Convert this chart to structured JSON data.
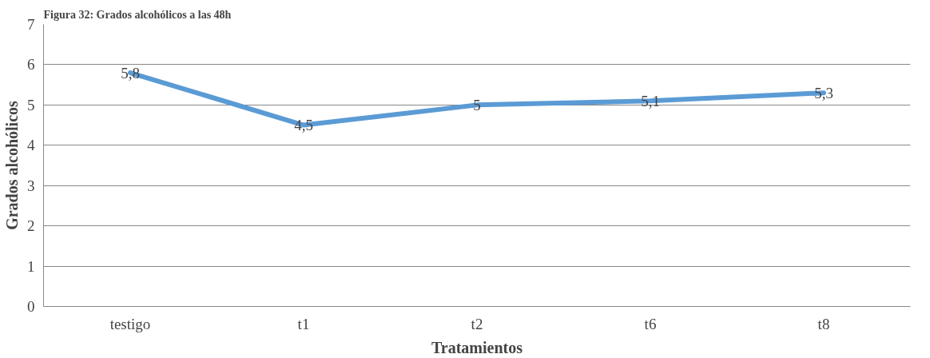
{
  "chart_data": {
    "type": "line",
    "title": "Figura 32: Grados alcohólicos a las 48h",
    "xlabel": "Tratamientos",
    "ylabel": "Grados alcohólicos",
    "categories": [
      "testigo",
      "t1",
      "t2",
      "t6",
      "t8"
    ],
    "series": [
      {
        "color": "#5b9bd5",
        "values": [
          5.8,
          4.5,
          5,
          5.1,
          5.3
        ],
        "value_labels": [
          "5,8",
          "4,5",
          "5",
          "5,1",
          "5,3"
        ]
      }
    ],
    "ylim": [
      0,
      7
    ],
    "yticks": [
      0,
      1,
      2,
      3,
      4,
      5,
      6,
      7
    ],
    "grid": "y",
    "line_style": "solid"
  }
}
